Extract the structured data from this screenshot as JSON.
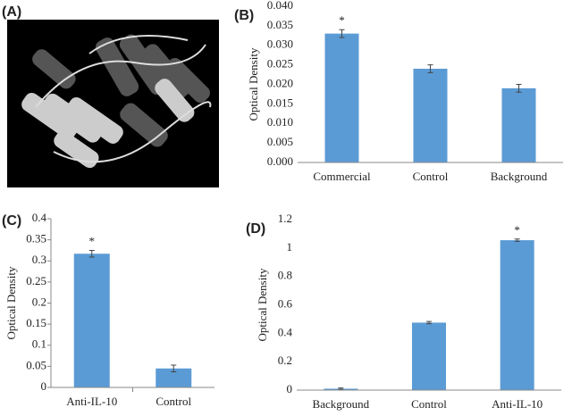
{
  "image_label": "(A)",
  "chart_data": [
    {
      "type": "bar",
      "label": "(B)",
      "ylabel": "Optical Density",
      "categories": [
        "Commercial",
        "Control",
        "Background"
      ],
      "values": [
        0.033,
        0.024,
        0.019
      ],
      "errors": [
        0.001,
        0.001,
        0.001
      ],
      "bar_labels": [
        "*",
        null,
        null
      ],
      "color": "#5b9bd5",
      "ylim": [
        0,
        0.04
      ],
      "yticks": [
        {
          "value": 0,
          "label": "0.000"
        },
        {
          "value": 0.005,
          "label": "0.005"
        },
        {
          "value": 0.01,
          "label": "0.010"
        },
        {
          "value": 0.015,
          "label": "0.015"
        },
        {
          "value": 0.02,
          "label": "0.020"
        },
        {
          "value": 0.025,
          "label": "0.025"
        },
        {
          "value": 0.03,
          "label": "0.030"
        },
        {
          "value": 0.035,
          "label": "0.035"
        },
        {
          "value": 0.04,
          "label": "0.040"
        }
      ]
    },
    {
      "type": "bar",
      "label": "(C)",
      "ylabel": "Optical Density",
      "categories": [
        "Anti-IL-10",
        "Control"
      ],
      "values": [
        0.317,
        0.045
      ],
      "errors": [
        0.008,
        0.008
      ],
      "bar_labels": [
        "*",
        null
      ],
      "color": "#5b9bd5",
      "ylim": [
        0,
        0.4
      ],
      "yticks": [
        0,
        0.05,
        0.1,
        0.15,
        0.2,
        0.25,
        0.3,
        0.35,
        0.4
      ]
    },
    {
      "type": "bar",
      "label": "(D)",
      "ylabel": "Optical Density",
      "categories": [
        "Background",
        "Control",
        "Anti-IL-10"
      ],
      "values": [
        0.01,
        0.475,
        1.055
      ],
      "errors": [
        0.005,
        0.008,
        0.008
      ],
      "bar_labels": [
        null,
        null,
        "*"
      ],
      "color": "#5b9bd5",
      "ylim": [
        0,
        1.2
      ],
      "yticks": [
        0,
        0.2,
        0.4,
        0.6,
        0.8,
        1,
        1.2
      ]
    }
  ]
}
